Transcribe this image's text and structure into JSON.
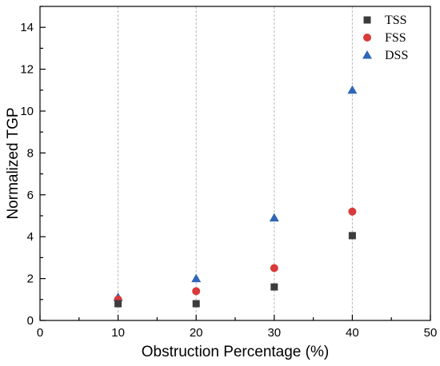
{
  "chart_data": {
    "type": "scatter",
    "title": "",
    "xlabel": "Obstruction Percentage (%)",
    "ylabel": "Normalized TGP",
    "xlim": [
      0,
      50
    ],
    "ylim": [
      0,
      15
    ],
    "x_ticks": [
      "0",
      "10",
      "20",
      "30",
      "40",
      "50"
    ],
    "y_ticks": [
      "0",
      "2",
      "4",
      "6",
      "8",
      "10",
      "12",
      "14"
    ],
    "grid": "vertical dashed at x=10,20,30,40",
    "legend_position": "top-right",
    "series": [
      {
        "name": "TSS",
        "marker": "square",
        "color": "#3c3c3c",
        "points": [
          [
            10,
            0.8
          ],
          [
            20,
            0.8
          ],
          [
            30,
            1.6
          ],
          [
            40,
            4.05
          ]
        ]
      },
      {
        "name": "FSS",
        "marker": "circle",
        "color": "#d93a3a",
        "points": [
          [
            10,
            1.0
          ],
          [
            20,
            1.4
          ],
          [
            30,
            2.5
          ],
          [
            40,
            5.2
          ]
        ]
      },
      {
        "name": "DSS",
        "marker": "triangle",
        "color": "#2f66b8",
        "points": [
          [
            10,
            1.1
          ],
          [
            20,
            2.0
          ],
          [
            30,
            4.9
          ],
          [
            40,
            11.0
          ]
        ]
      }
    ]
  }
}
